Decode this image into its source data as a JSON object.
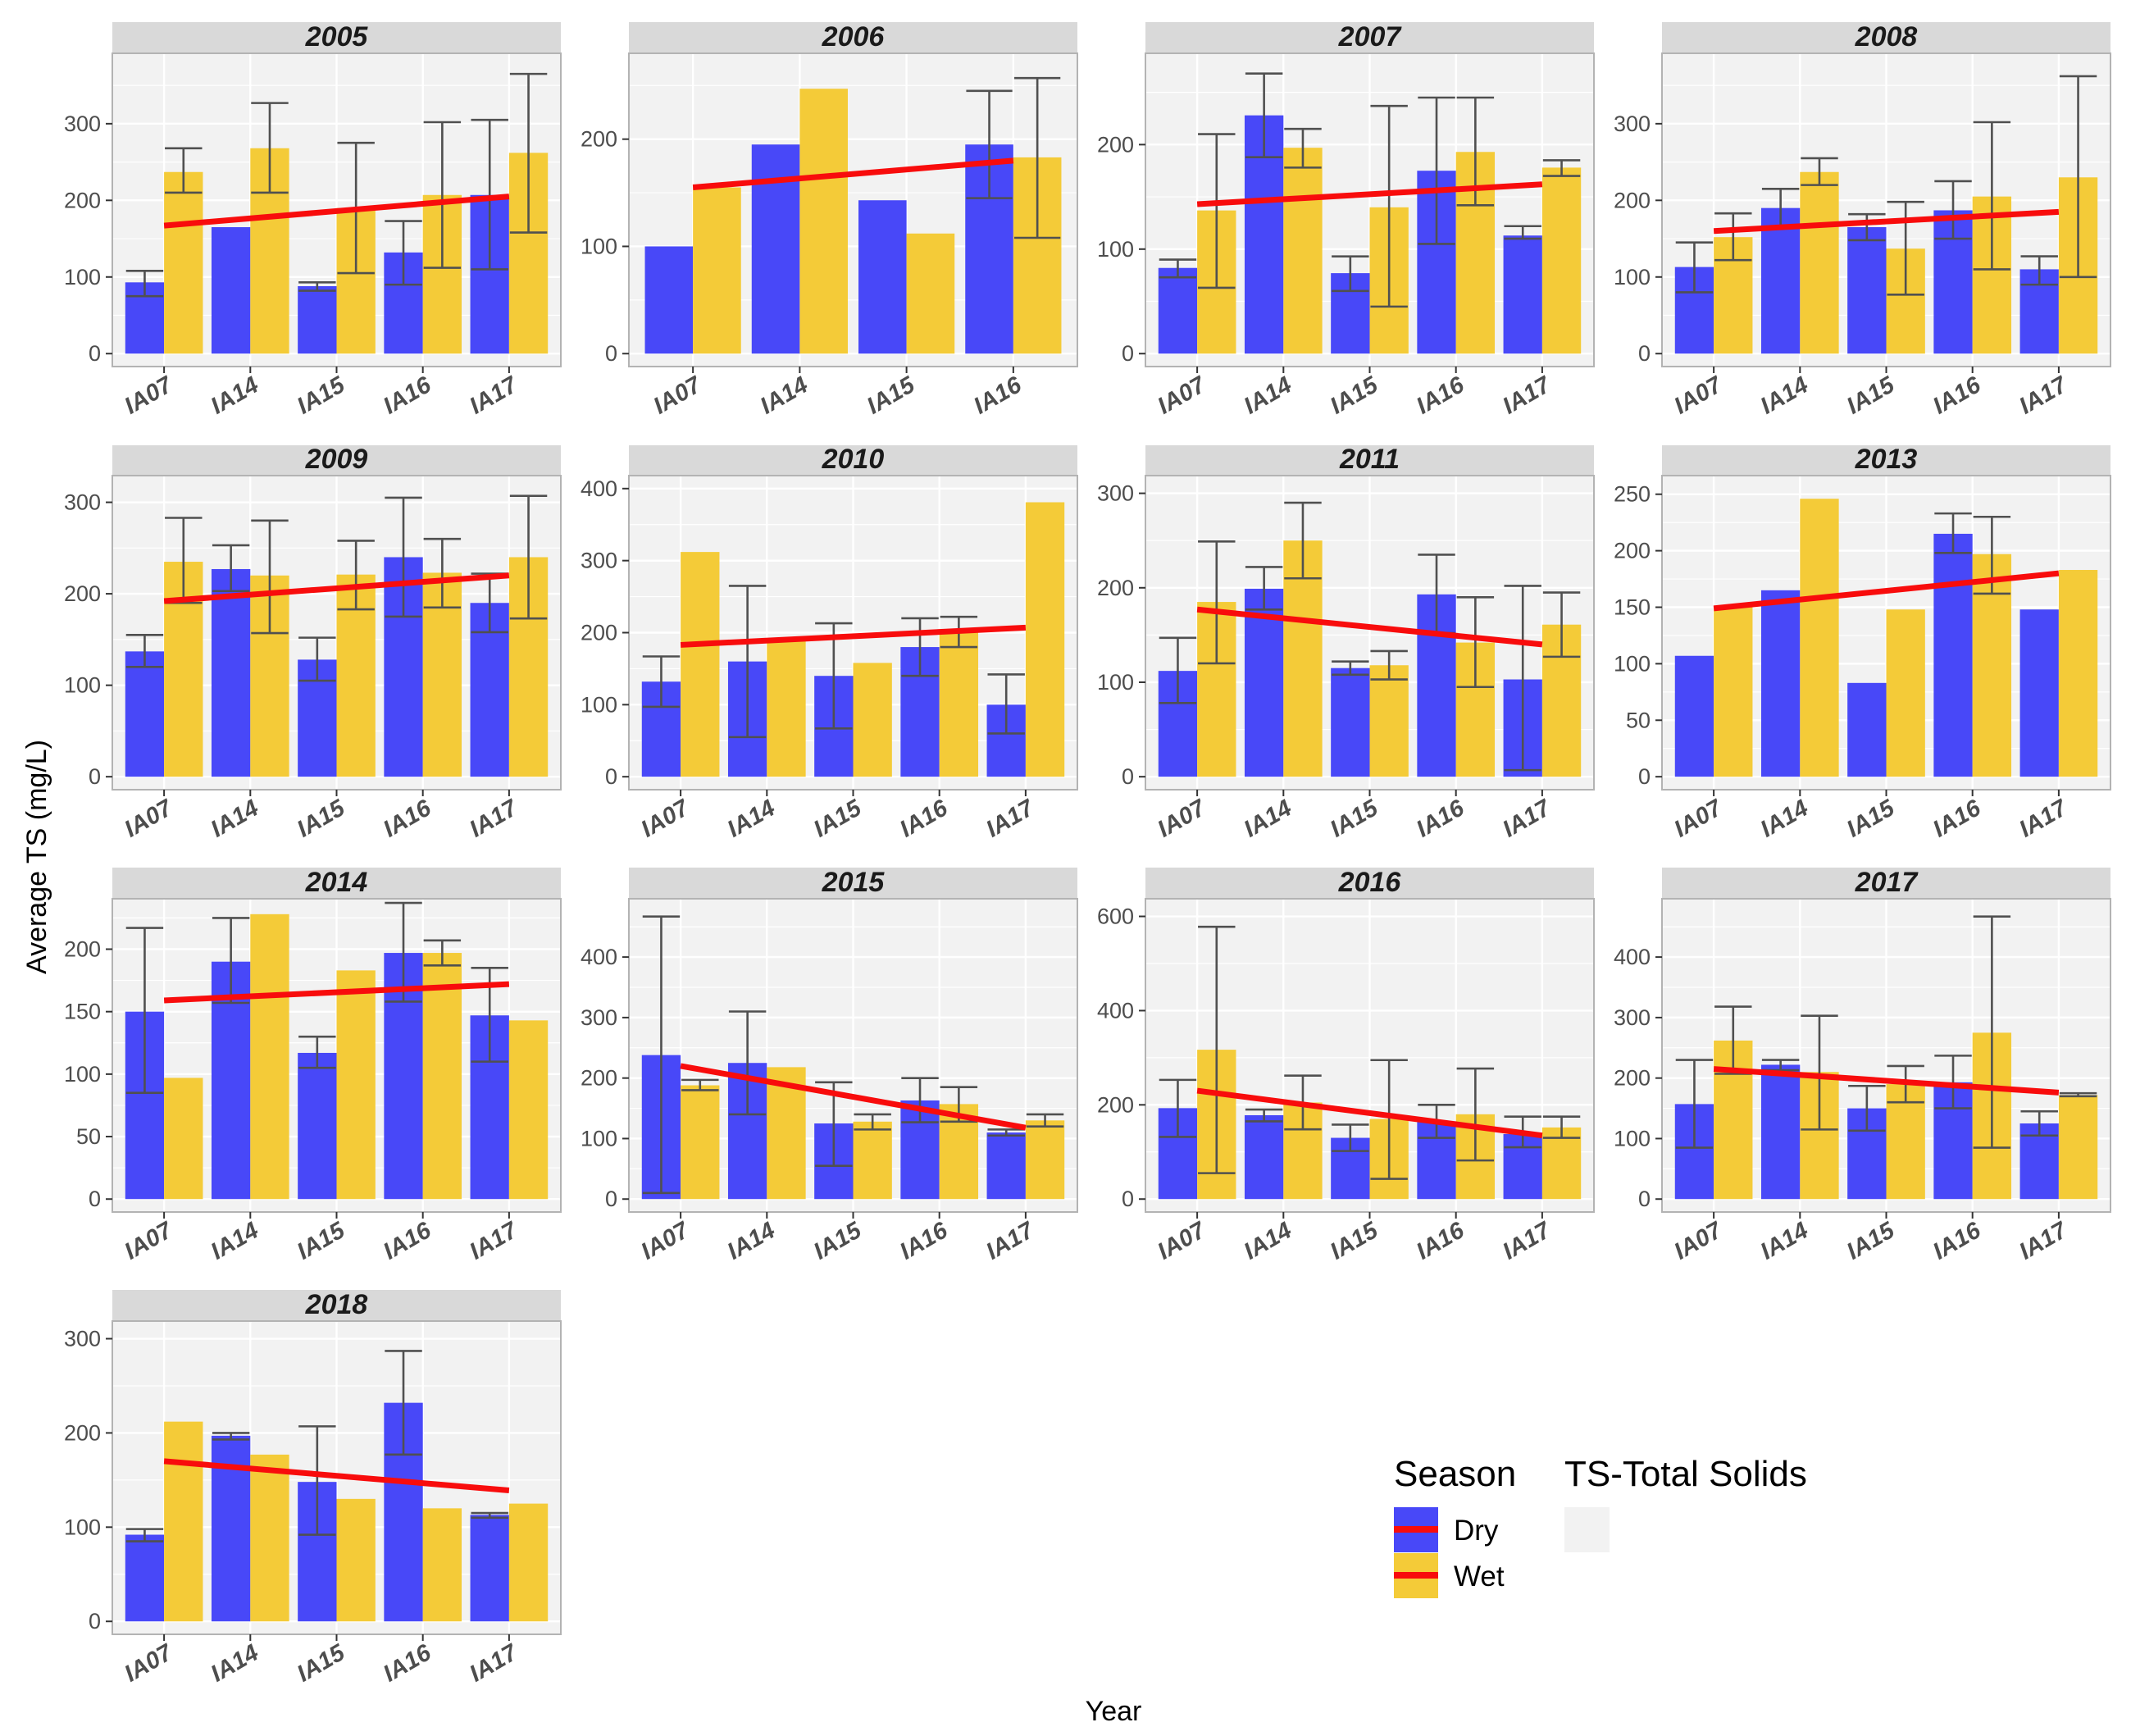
{
  "chart_data": {
    "type": "bar",
    "title": "",
    "xlabel": "Year",
    "ylabel": "Average TS (mg/L)",
    "colors": {
      "dry": "#4848F8",
      "wet": "#F4CB38",
      "trend": "#F80C0C",
      "error_bar": "#505050",
      "panel_bg": "#F2F2F2",
      "strip_bg": "#D9D9D9",
      "grid": "#FFFFFF",
      "panel_border": "#B3B3B3"
    },
    "legend": {
      "title": "Season",
      "entries": [
        {
          "name": "Dry",
          "color": "#4848F8"
        },
        {
          "name": "Wet",
          "color": "#F4CB38"
        }
      ],
      "extra_title": "TS-Total Solids"
    },
    "panels": [
      {
        "title": "2005",
        "ylim": [
          0,
          375
        ],
        "ticks": [
          0,
          100,
          200,
          300
        ],
        "categories": [
          "IA07",
          "IA14",
          "IA15",
          "IA16",
          "IA17"
        ],
        "series": [
          {
            "name": "Dry",
            "values": [
              93,
              165,
              88,
              132,
              207
            ],
            "err_low": [
              75,
              null,
              82,
              90,
              110
            ],
            "err_high": [
              108,
              null,
              93,
              173,
              305
            ]
          },
          {
            "name": "Wet",
            "values": [
              237,
              268,
              190,
              207,
              262
            ],
            "err_low": [
              210,
              210,
              105,
              112,
              158
            ],
            "err_high": [
              268,
              327,
              275,
              302,
              365
            ]
          }
        ],
        "trend": [
          167,
          205
        ]
      },
      {
        "title": "2006",
        "ylim": [
          0,
          268
        ],
        "ticks": [
          0,
          100,
          200
        ],
        "categories": [
          "IA07",
          "IA14",
          "IA15",
          "IA16"
        ],
        "series": [
          {
            "name": "Dry",
            "values": [
              100,
              195,
              143,
              195
            ],
            "err_low": [
              null,
              null,
              null,
              145
            ],
            "err_high": [
              null,
              null,
              null,
              245
            ]
          },
          {
            "name": "Wet",
            "values": [
              155,
              247,
              112,
              183
            ],
            "err_low": [
              null,
              null,
              null,
              108
            ],
            "err_high": [
              null,
              null,
              null,
              257
            ]
          }
        ],
        "trend": [
          155,
          180
        ]
      },
      {
        "title": "2007",
        "ylim": [
          0,
          275
        ],
        "ticks": [
          0,
          100,
          200
        ],
        "categories": [
          "IA07",
          "IA14",
          "IA15",
          "IA16",
          "IA17"
        ],
        "series": [
          {
            "name": "Dry",
            "values": [
              82,
              228,
              77,
              175,
              113
            ],
            "err_low": [
              73,
              188,
              60,
              105,
              110
            ],
            "err_high": [
              90,
              268,
              93,
              245,
              122
            ]
          },
          {
            "name": "Wet",
            "values": [
              137,
              197,
              140,
              193,
              178
            ],
            "err_low": [
              63,
              178,
              45,
              142,
              170
            ],
            "err_high": [
              210,
              215,
              237,
              245,
              185
            ]
          }
        ],
        "trend": [
          143,
          162
        ]
      },
      {
        "title": "2008",
        "ylim": [
          0,
          375
        ],
        "ticks": [
          0,
          100,
          200,
          300
        ],
        "categories": [
          "IA07",
          "IA14",
          "IA15",
          "IA16",
          "IA17"
        ],
        "series": [
          {
            "name": "Dry",
            "values": [
              113,
              190,
              165,
              187,
              110
            ],
            "err_low": [
              80,
              165,
              148,
              150,
              90
            ],
            "err_high": [
              145,
              215,
              182,
              225,
              127
            ]
          },
          {
            "name": "Wet",
            "values": [
              152,
              237,
              137,
              205,
              230
            ],
            "err_low": [
              122,
              220,
              77,
              110,
              100
            ],
            "err_high": [
              183,
              255,
              198,
              302,
              362
            ]
          }
        ],
        "trend": [
          160,
          185
        ]
      },
      {
        "title": "2009",
        "ylim": [
          0,
          315
        ],
        "ticks": [
          0,
          100,
          200,
          300
        ],
        "categories": [
          "IA07",
          "IA14",
          "IA15",
          "IA16",
          "IA17"
        ],
        "series": [
          {
            "name": "Dry",
            "values": [
              137,
              227,
              128,
              240,
              190
            ],
            "err_low": [
              120,
              203,
              105,
              175,
              158
            ],
            "err_high": [
              155,
              253,
              152,
              305,
              222
            ]
          },
          {
            "name": "Wet",
            "values": [
              235,
              220,
              221,
              223,
              240
            ],
            "err_low": [
              190,
              157,
              183,
              185,
              173
            ],
            "err_high": [
              283,
              280,
              258,
              260,
              307
            ]
          }
        ],
        "trend": [
          192,
          220
        ]
      },
      {
        "title": "2010",
        "ylim": [
          0,
          400
        ],
        "ticks": [
          0,
          100,
          200,
          300,
          400
        ],
        "categories": [
          "IA07",
          "IA14",
          "IA15",
          "IA16",
          "IA17"
        ],
        "series": [
          {
            "name": "Dry",
            "values": [
              132,
              160,
              140,
              180,
              100
            ],
            "err_low": [
              97,
              55,
              67,
              140,
              60
            ],
            "err_high": [
              167,
              265,
              213,
              220,
              142
            ]
          },
          {
            "name": "Wet",
            "values": [
              312,
              190,
              158,
              200,
              381
            ],
            "err_low": [
              null,
              null,
              null,
              180,
              null
            ],
            "err_high": [
              null,
              null,
              null,
              222,
              null
            ]
          }
        ],
        "trend": [
          183,
          207
        ]
      },
      {
        "title": "2011",
        "ylim": [
          0,
          305
        ],
        "ticks": [
          0,
          100,
          200,
          300
        ],
        "categories": [
          "IA07",
          "IA14",
          "IA15",
          "IA16",
          "IA17"
        ],
        "series": [
          {
            "name": "Dry",
            "values": [
              112,
              199,
              115,
              193,
              103
            ],
            "err_low": [
              78,
              177,
              108,
              152,
              7
            ],
            "err_high": [
              147,
              222,
              122,
              235,
              202
            ]
          },
          {
            "name": "Wet",
            "values": [
              185,
              250,
              118,
              142,
              161
            ],
            "err_low": [
              120,
              210,
              103,
              95,
              127
            ],
            "err_high": [
              249,
              290,
              133,
              190,
              195
            ]
          }
        ],
        "trend": [
          177,
          140
        ]
      },
      {
        "title": "2013",
        "ylim": [
          0,
          255
        ],
        "ticks": [
          0,
          50,
          100,
          150,
          200,
          250
        ],
        "categories": [
          "IA07",
          "IA14",
          "IA15",
          "IA16",
          "IA17"
        ],
        "series": [
          {
            "name": "Dry",
            "values": [
              107,
              165,
              83,
              215,
              148
            ],
            "err_low": [
              null,
              null,
              null,
              198,
              null
            ],
            "err_high": [
              null,
              null,
              null,
              233,
              null
            ]
          },
          {
            "name": "Wet",
            "values": [
              150,
              246,
              148,
              197,
              183
            ],
            "err_low": [
              null,
              null,
              null,
              162,
              null
            ],
            "err_high": [
              null,
              null,
              null,
              230,
              null
            ]
          }
        ],
        "trend": [
          149,
          180
        ]
      },
      {
        "title": "2014",
        "ylim": [
          0,
          230
        ],
        "ticks": [
          0,
          50,
          100,
          150,
          200
        ],
        "categories": [
          "IA07",
          "IA14",
          "IA15",
          "IA16",
          "IA17"
        ],
        "series": [
          {
            "name": "Dry",
            "values": [
              150,
              190,
              117,
              197,
              147
            ],
            "err_low": [
              85,
              157,
              105,
              158,
              110
            ],
            "err_high": [
              217,
              225,
              130,
              237,
              185
            ]
          },
          {
            "name": "Wet",
            "values": [
              97,
              228,
              183,
              197,
              143
            ],
            "err_low": [
              null,
              null,
              null,
              187,
              null
            ],
            "err_high": [
              null,
              null,
              null,
              207,
              null
            ]
          }
        ],
        "trend": [
          159,
          172
        ]
      },
      {
        "title": "2015",
        "ylim": [
          0,
          475
        ],
        "ticks": [
          0,
          100,
          200,
          300,
          400
        ],
        "categories": [
          "IA07",
          "IA14",
          "IA15",
          "IA16",
          "IA17"
        ],
        "series": [
          {
            "name": "Dry",
            "values": [
              238,
              225,
              125,
              163,
              110
            ],
            "err_low": [
              10,
              140,
              55,
              127,
              105
            ],
            "err_high": [
              467,
              310,
              193,
              200,
              115
            ]
          },
          {
            "name": "Wet",
            "values": [
              188,
              218,
              128,
              157,
              130
            ],
            "err_low": [
              180,
              null,
              115,
              128,
              120
            ],
            "err_high": [
              197,
              null,
              140,
              185,
              140
            ]
          }
        ],
        "trend": [
          220,
          118
        ]
      },
      {
        "title": "2016",
        "ylim": [
          0,
          610
        ],
        "ticks": [
          0,
          200,
          400,
          600
        ],
        "categories": [
          "IA07",
          "IA14",
          "IA15",
          "IA16",
          "IA17"
        ],
        "series": [
          {
            "name": "Dry",
            "values": [
              193,
              178,
              130,
              165,
              138
            ],
            "err_low": [
              132,
              165,
              102,
              130,
              110
            ],
            "err_high": [
              253,
              190,
              158,
              200,
              175
            ]
          },
          {
            "name": "Wet",
            "values": [
              317,
              205,
              170,
              180,
              152
            ],
            "err_low": [
              55,
              148,
              43,
              82,
              130
            ],
            "err_high": [
              578,
              262,
              295,
              277,
              175
            ]
          }
        ],
        "trend": [
          230,
          135
        ]
      },
      {
        "title": "2017",
        "ylim": [
          0,
          475
        ],
        "ticks": [
          0,
          100,
          200,
          300,
          400
        ],
        "categories": [
          "IA07",
          "IA14",
          "IA15",
          "IA16",
          "IA17"
        ],
        "series": [
          {
            "name": "Dry",
            "values": [
              157,
              222,
              150,
              193,
              125
            ],
            "err_low": [
              85,
              213,
              113,
              150,
              105
            ],
            "err_high": [
              230,
              230,
              187,
              237,
              145
            ]
          },
          {
            "name": "Wet",
            "values": [
              262,
              210,
              190,
              275,
              172
            ],
            "err_low": [
              207,
              115,
              160,
              85,
              170
            ],
            "err_high": [
              318,
              303,
              220,
              467,
              175
            ]
          }
        ],
        "trend": [
          215,
          176
        ]
      },
      {
        "title": "2018",
        "ylim": [
          0,
          305
        ],
        "ticks": [
          0,
          100,
          200,
          300
        ],
        "categories": [
          "IA07",
          "IA14",
          "IA15",
          "IA16",
          "IA17"
        ],
        "series": [
          {
            "name": "Dry",
            "values": [
              92,
              197,
              148,
              232,
              113
            ],
            "err_low": [
              85,
              193,
              92,
              177,
              110
            ],
            "err_high": [
              98,
              200,
              207,
              287,
              115
            ]
          },
          {
            "name": "Wet",
            "values": [
              212,
              177,
              130,
              120,
              125
            ],
            "err_low": [
              null,
              null,
              null,
              null,
              null
            ],
            "err_high": [
              null,
              null,
              null,
              null,
              null
            ]
          }
        ],
        "trend": [
          170,
          139
        ]
      }
    ]
  }
}
